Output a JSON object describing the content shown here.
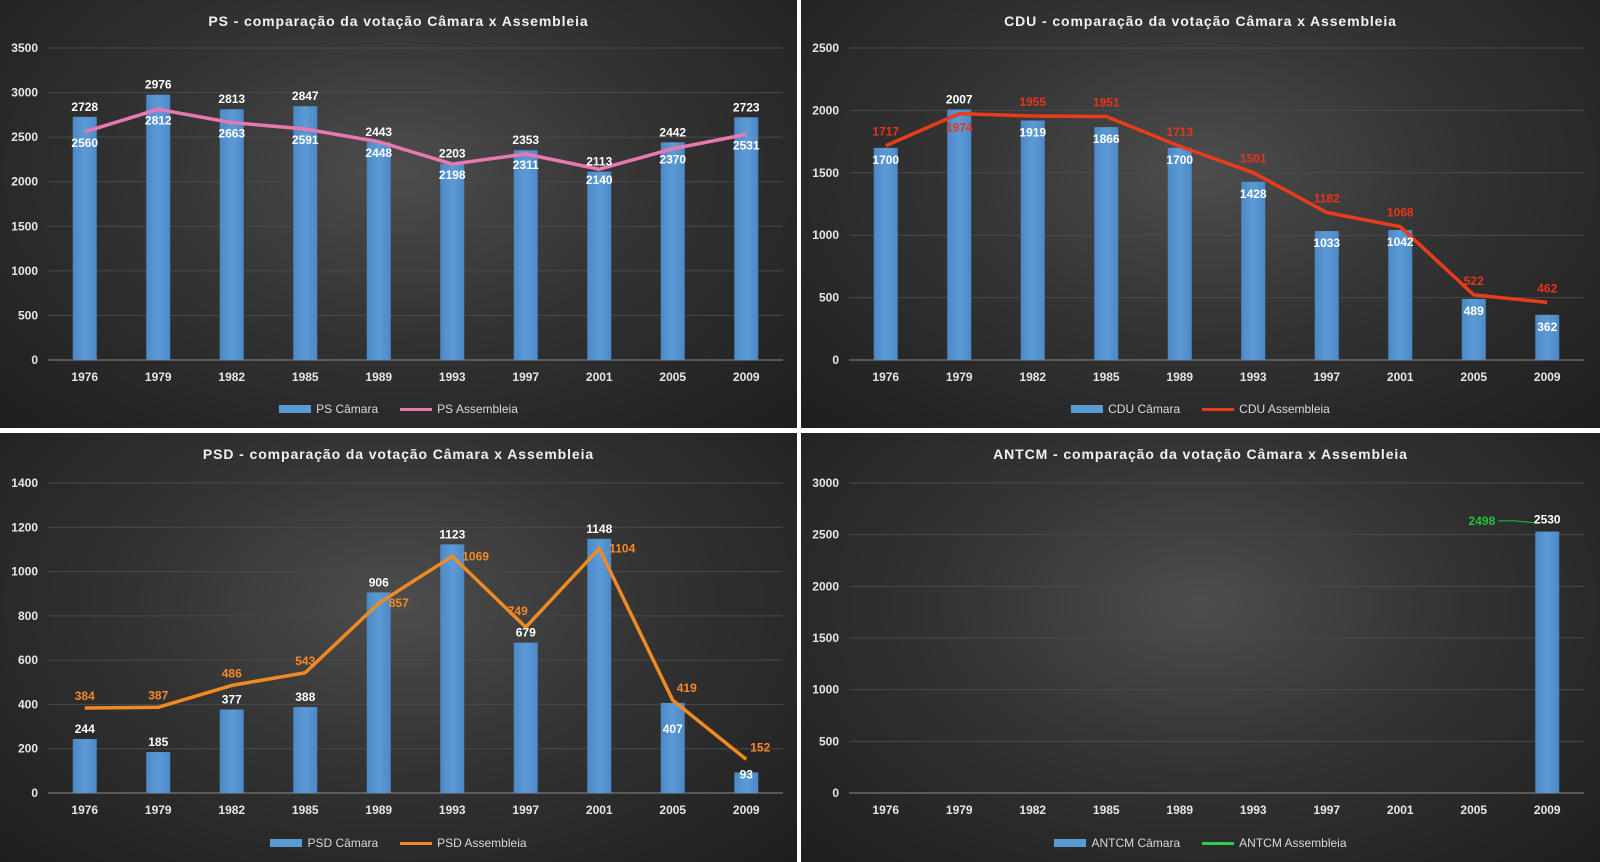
{
  "chart_data": [
    {
      "type": "bar",
      "title": "PS - comparação da votação Câmara x Assembleia",
      "categories": [
        "1976",
        "1979",
        "1982",
        "1985",
        "1989",
        "1993",
        "1997",
        "2001",
        "2005",
        "2009"
      ],
      "ylim": [
        0,
        3500
      ],
      "yticks": [
        0,
        500,
        1000,
        1500,
        2000,
        2500,
        3000,
        3500
      ],
      "grid": true,
      "legend_position": "bottom",
      "series": [
        {
          "name": "PS Câmara",
          "kind": "bar",
          "color": "#5b9bd5",
          "label_color": "#ffffff",
          "values": [
            2728,
            2976,
            2813,
            2847,
            2443,
            2203,
            2353,
            2113,
            2442,
            2723
          ]
        },
        {
          "name": "PS Assembleia",
          "kind": "line",
          "color": "#e878b0",
          "label_color": "#ffffff",
          "values": [
            2560,
            2812,
            2663,
            2591,
            2448,
            2198,
            2311,
            2140,
            2370,
            2531
          ]
        }
      ]
    },
    {
      "type": "bar",
      "title": "CDU - comparação da votação Câmara x Assembleia",
      "categories": [
        "1976",
        "1979",
        "1982",
        "1985",
        "1989",
        "1993",
        "1997",
        "2001",
        "2005",
        "2009"
      ],
      "ylim": [
        0,
        2500
      ],
      "yticks": [
        0,
        500,
        1000,
        1500,
        2000,
        2500
      ],
      "grid": true,
      "legend_position": "bottom",
      "series": [
        {
          "name": "CDU Câmara",
          "kind": "bar",
          "color": "#5b9bd5",
          "label_color": "#ffffff",
          "values": [
            1700,
            2007,
            1919,
            1866,
            1700,
            1428,
            1033,
            1042,
            489,
            362
          ]
        },
        {
          "name": "CDU Assembleia",
          "kind": "line",
          "color": "#e83c1a",
          "label_color": "#e8341a",
          "values": [
            1717,
            1974,
            1955,
            1951,
            1713,
            1501,
            1182,
            1068,
            522,
            462
          ]
        }
      ]
    },
    {
      "type": "bar",
      "title": "PSD - comparação da votação Câmara x Assembleia",
      "categories": [
        "1976",
        "1979",
        "1982",
        "1985",
        "1989",
        "1993",
        "1997",
        "2001",
        "2005",
        "2009"
      ],
      "ylim": [
        0,
        1400
      ],
      "yticks": [
        0,
        200,
        400,
        600,
        800,
        1000,
        1200,
        1400
      ],
      "grid": true,
      "legend_position": "bottom",
      "series": [
        {
          "name": "PSD Câmara",
          "kind": "bar",
          "color": "#5b9bd5",
          "label_color": "#ffffff",
          "values": [
            244,
            185,
            377,
            388,
            906,
            1123,
            679,
            1148,
            407,
            93
          ]
        },
        {
          "name": "PSD Assembleia",
          "kind": "line",
          "color": "#f08a24",
          "label_color": "#f5892a",
          "values": [
            384,
            387,
            486,
            543,
            857,
            1069,
            749,
            1104,
            419,
            152
          ]
        }
      ]
    },
    {
      "type": "bar",
      "title": "ANTCM - comparação da votação Câmara x Assembleia",
      "categories": [
        "1976",
        "1979",
        "1982",
        "1985",
        "1989",
        "1993",
        "1997",
        "2001",
        "2005",
        "2009"
      ],
      "ylim": [
        0,
        3000
      ],
      "yticks": [
        0,
        500,
        1000,
        1500,
        2000,
        2500,
        3000
      ],
      "grid": true,
      "legend_position": "bottom",
      "series": [
        {
          "name": "ANTCM Câmara",
          "kind": "bar",
          "color": "#5b9bd5",
          "label_color": "#ffffff",
          "values": [
            null,
            null,
            null,
            null,
            null,
            null,
            null,
            null,
            null,
            2530
          ]
        },
        {
          "name": "ANTCM Assembleia",
          "kind": "line",
          "color": "#2ecc4a",
          "label_color": "#22c23a",
          "values": [
            null,
            null,
            null,
            null,
            null,
            null,
            null,
            null,
            null,
            2498
          ]
        }
      ]
    }
  ]
}
